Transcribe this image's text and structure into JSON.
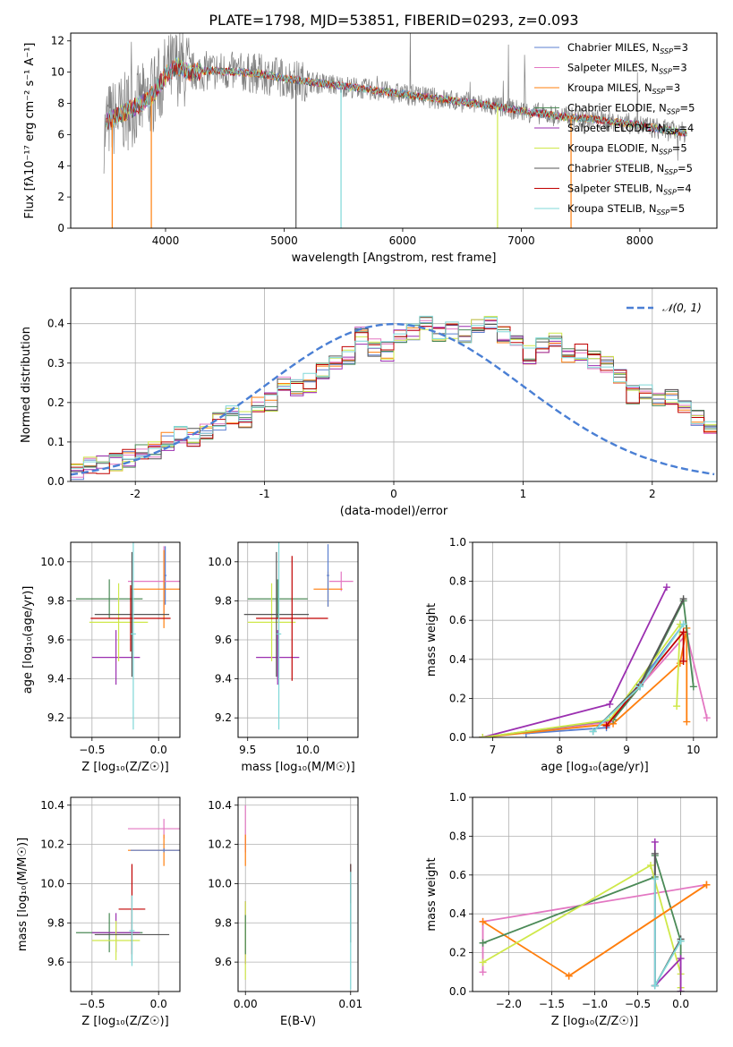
{
  "figure": {
    "title": "PLATE=1798, MJD=53851, FIBERID=0293, z=0.093"
  },
  "colors": {
    "chabrier_miles": "#5b7fd0",
    "salpeter_miles": "#e377c2",
    "kroupa_miles": "#ff7f0e",
    "chabrier_elodie": "#4b8a57",
    "salpeter_elodie": "#9b2fb0",
    "kroupa_elodie": "#cfe84a",
    "chabrier_stelib": "#555555",
    "salpeter_stelib": "#c00000",
    "kroupa_stelib": "#7fd8d8",
    "observed": "#808080",
    "normal_curve": "#4a7fd4"
  },
  "chart_data": [
    {
      "id": "spectrum",
      "type": "line",
      "xlabel": "wavelength [Angstrom, rest frame]",
      "ylabel": "Flux [fλ10⁻¹⁷ erg cm⁻² s⁻¹ A⁻¹]",
      "xlim": [
        3200,
        8650
      ],
      "ylim": [
        0,
        12.5
      ],
      "xticks": [
        4000,
        5000,
        6000,
        7000,
        8000
      ],
      "yticks": [
        0,
        2,
        4,
        6,
        8,
        10,
        12
      ],
      "grid": false,
      "legend_position": "top-right",
      "continuum": {
        "x": [
          3500,
          3600,
          3700,
          3800,
          3900,
          4000,
          4100,
          4200,
          4400,
          4600,
          4800,
          5000,
          5200,
          5400,
          5600,
          5800,
          6000,
          6200,
          6400,
          6600,
          6800,
          7000,
          7200,
          7400,
          7600,
          7800,
          8000,
          8200,
          8400
        ],
        "y": [
          6.8,
          7.2,
          7.6,
          8.0,
          8.6,
          9.8,
          10.4,
          10.0,
          10.1,
          10.0,
          9.9,
          9.6,
          9.4,
          9.2,
          9.0,
          8.8,
          8.6,
          8.4,
          8.2,
          8.0,
          7.8,
          7.5,
          7.3,
          7.1,
          7.0,
          6.8,
          6.6,
          6.3,
          6.1
        ]
      },
      "series": [
        {
          "name": "Chabrier MILES, N_SSP=3",
          "label_main": "Chabrier MILES, N",
          "label_sub": "SSP",
          "label_tail": "=3",
          "color_key": "chabrier_miles"
        },
        {
          "name": "Salpeter MILES, N_SSP=3",
          "label_main": "Salpeter MILES, N",
          "label_sub": "SSP",
          "label_tail": "=3",
          "color_key": "salpeter_miles"
        },
        {
          "name": "Kroupa MILES, N_SSP=3",
          "label_main": "Kroupa MILES, N",
          "label_sub": "SSP",
          "label_tail": "=3",
          "color_key": "kroupa_miles"
        },
        {
          "name": "Chabrier ELODIE, N_SSP=5",
          "label_main": "Chabrier ELODIE, N",
          "label_sub": "SSP",
          "label_tail": "=5",
          "color_key": "chabrier_elodie"
        },
        {
          "name": "Salpeter ELODIE, N_SSP=4",
          "label_main": "Salpeter ELODIE, N",
          "label_sub": "SSP",
          "label_tail": "=4",
          "color_key": "salpeter_elodie"
        },
        {
          "name": "Kroupa ELODIE, N_SSP=5",
          "label_main": "Kroupa ELODIE, N",
          "label_sub": "SSP",
          "label_tail": "=5",
          "color_key": "kroupa_elodie"
        },
        {
          "name": "Chabrier STELIB, N_SSP=5",
          "label_main": "Chabrier STELIB, N",
          "label_sub": "SSP",
          "label_tail": "=5",
          "color_key": "chabrier_stelib"
        },
        {
          "name": "Salpeter STELIB, N_SSP=4",
          "label_main": "Salpeter STELIB, N",
          "label_sub": "SSP",
          "label_tail": "=4",
          "color_key": "salpeter_stelib"
        },
        {
          "name": "Kroupa STELIB, N_SSP=5",
          "label_main": "Kroupa STELIB, N",
          "label_sub": "SSP",
          "label_tail": "=5",
          "color_key": "kroupa_stelib"
        }
      ]
    },
    {
      "id": "residuals",
      "type": "step",
      "xlabel": "(data-model)/error",
      "ylabel": "Normed distribution",
      "xlim": [
        -2.5,
        2.5
      ],
      "ylim": [
        0,
        0.49
      ],
      "xticks": [
        -2,
        -1,
        0,
        1,
        2
      ],
      "yticks": [
        0.0,
        0.1,
        0.2,
        0.3,
        0.4
      ],
      "grid": true,
      "legend_position": "top-right",
      "legend_label": "𝒩(0, 1)",
      "bin_width": 0.1,
      "bin_start": -2.5,
      "base_profile": [
        0.03,
        0.04,
        0.045,
        0.05,
        0.06,
        0.07,
        0.08,
        0.1,
        0.12,
        0.11,
        0.13,
        0.15,
        0.17,
        0.16,
        0.19,
        0.2,
        0.24,
        0.24,
        0.25,
        0.28,
        0.3,
        0.32,
        0.37,
        0.34,
        0.33,
        0.36,
        0.38,
        0.4,
        0.37,
        0.38,
        0.37,
        0.39,
        0.41,
        0.37,
        0.36,
        0.32,
        0.35,
        0.36,
        0.32,
        0.33,
        0.31,
        0.3,
        0.27,
        0.22,
        0.23,
        0.21,
        0.21,
        0.19,
        0.16,
        0.13,
        0.12,
        0.11,
        0.1,
        0.08,
        0.07,
        0.07,
        0.07,
        0.06,
        0.05,
        0.04,
        0.03,
        0.03
      ],
      "normal_curve": {
        "mu": 0,
        "sigma": 1
      }
    },
    {
      "id": "age_vs_Z",
      "type": "errorbar",
      "xlabel": "Z [log₁₀(Z/Z☉)]",
      "ylabel": "age  [log₁₀(age/yr)]",
      "xlim": [
        -0.66,
        0.16
      ],
      "ylim": [
        9.1,
        10.1
      ],
      "xticks": [
        -0.5,
        0.0
      ],
      "xtick_labels": [
        "−0.5",
        "0.0"
      ],
      "yticks": [
        9.2,
        9.4,
        9.6,
        9.8,
        10.0
      ],
      "grid": true,
      "points": [
        {
          "color_key": "chabrier_miles",
          "x": 0.05,
          "y": 9.93,
          "xerr": 0.01,
          "yerr": 0.15
        },
        {
          "color_key": "salpeter_miles",
          "x": 0.04,
          "y": 9.9,
          "xerr": 0.27,
          "yerr": 0.18
        },
        {
          "color_key": "kroupa_miles",
          "x": 0.04,
          "y": 9.86,
          "xerr": 0.25,
          "yerr": 0.2
        },
        {
          "color_key": "chabrier_elodie",
          "x": -0.37,
          "y": 9.81,
          "xerr": 0.25,
          "yerr": 0.1
        },
        {
          "color_key": "salpeter_elodie",
          "x": -0.32,
          "y": 9.51,
          "xerr": 0.18,
          "yerr": 0.14
        },
        {
          "color_key": "kroupa_elodie",
          "x": -0.3,
          "y": 9.69,
          "xerr": 0.22,
          "yerr": 0.2
        },
        {
          "color_key": "chabrier_stelib",
          "x": -0.2,
          "y": 9.73,
          "xerr": 0.28,
          "yerr": 0.32
        },
        {
          "color_key": "salpeter_stelib",
          "x": -0.21,
          "y": 9.71,
          "xerr": 0.3,
          "yerr": 0.17
        },
        {
          "color_key": "kroupa_stelib",
          "x": -0.19,
          "y": 9.63,
          "xerr": 0.02,
          "yerr": 0.49
        }
      ]
    },
    {
      "id": "age_vs_mass",
      "type": "errorbar",
      "xlabel": "mass [log₁₀(M/M☉)]",
      "xlim": [
        9.42,
        10.42
      ],
      "ylim": [
        9.1,
        10.1
      ],
      "xticks": [
        9.5,
        10.0
      ],
      "xtick_labels": [
        "9.5",
        "10.0"
      ],
      "yticks": [
        9.2,
        9.4,
        9.6,
        9.8,
        10.0
      ],
      "grid": true,
      "points": [
        {
          "color_key": "salpeter_miles",
          "x": 10.28,
          "y": 9.9,
          "xerr": 0.1,
          "yerr": 0.05
        },
        {
          "color_key": "kroupa_miles",
          "x": 10.17,
          "y": 9.86,
          "xerr": 0.12,
          "yerr": 0.09
        },
        {
          "color_key": "chabrier_miles",
          "x": 10.17,
          "y": 9.93,
          "xerr": 0.01,
          "yerr": 0.16
        },
        {
          "color_key": "chabrier_elodie",
          "x": 9.75,
          "y": 9.81,
          "xerr": 0.25,
          "yerr": 0.1
        },
        {
          "color_key": "salpeter_elodie",
          "x": 9.75,
          "y": 9.51,
          "xerr": 0.18,
          "yerr": 0.14
        },
        {
          "color_key": "kroupa_elodie",
          "x": 9.7,
          "y": 9.69,
          "xerr": 0.2,
          "yerr": 0.2
        },
        {
          "color_key": "chabrier_stelib",
          "x": 9.74,
          "y": 9.73,
          "xerr": 0.27,
          "yerr": 0.32
        },
        {
          "color_key": "salpeter_stelib",
          "x": 9.87,
          "y": 9.71,
          "xerr": 0.3,
          "yerr": 0.32
        },
        {
          "color_key": "kroupa_stelib",
          "x": 9.76,
          "y": 9.63,
          "xerr": 0.02,
          "yerr": 0.49
        }
      ]
    },
    {
      "id": "weight_vs_age",
      "type": "line",
      "xlabel": "age  [log₁₀(age/yr)]",
      "ylabel": "mass weight",
      "xlim": [
        6.7,
        10.35
      ],
      "ylim": [
        0,
        1.0
      ],
      "xticks": [
        7,
        8,
        9,
        10
      ],
      "yticks": [
        0.0,
        0.2,
        0.4,
        0.6,
        0.8,
        1.0
      ],
      "grid": true,
      "series": [
        {
          "color_key": "chabrier_miles",
          "x": [
            7.5,
            8.7,
            9.85
          ],
          "y": [
            0.02,
            0.05,
            0.58
          ]
        },
        {
          "color_key": "salpeter_miles",
          "x": [
            6.85,
            8.75,
            9.2,
            9.9,
            10.2
          ],
          "y": [
            0.0,
            0.08,
            0.26,
            0.53,
            0.1
          ]
        },
        {
          "color_key": "kroupa_miles",
          "x": [
            6.85,
            8.8,
            9.8,
            9.9,
            9.9
          ],
          "y": [
            0.0,
            0.07,
            0.38,
            0.56,
            0.08
          ]
        },
        {
          "color_key": "chabrier_elodie",
          "x": [
            6.85,
            8.8,
            9.2,
            9.85,
            10.0
          ],
          "y": [
            0.0,
            0.09,
            0.26,
            0.7,
            0.26
          ]
        },
        {
          "color_key": "salpeter_elodie",
          "x": [
            6.85,
            8.75,
            9.6
          ],
          "y": [
            0.0,
            0.17,
            0.77
          ]
        },
        {
          "color_key": "kroupa_elodie",
          "x": [
            6.85,
            8.75,
            9.8,
            9.75
          ],
          "y": [
            0.0,
            0.09,
            0.58,
            0.16
          ]
        },
        {
          "color_key": "chabrier_stelib",
          "x": [
            8.5,
            9.2,
            9.85
          ],
          "y": [
            0.03,
            0.27,
            0.71
          ]
        },
        {
          "color_key": "salpeter_stelib",
          "x": [
            8.7,
            9.85,
            9.85
          ],
          "y": [
            0.06,
            0.54,
            0.39
          ]
        },
        {
          "color_key": "kroupa_stelib",
          "x": [
            8.5,
            9.2,
            9.85
          ],
          "y": [
            0.03,
            0.26,
            0.58
          ]
        }
      ]
    },
    {
      "id": "mass_vs_Z",
      "type": "errorbar",
      "xlabel": "Z [log₁₀(Z/Z☉)]",
      "ylabel": "mass [log₁₀(M/M☉)]",
      "xlim": [
        -0.66,
        0.16
      ],
      "ylim": [
        9.45,
        10.44
      ],
      "xticks": [
        -0.5,
        0.0
      ],
      "xtick_labels": [
        "−0.5",
        "0.0"
      ],
      "yticks": [
        9.6,
        9.8,
        10.0,
        10.2,
        10.4
      ],
      "grid": true,
      "points": [
        {
          "color_key": "salpeter_miles",
          "x": 0.04,
          "y": 10.28,
          "xerr": 0.27,
          "yerr": 0.05
        },
        {
          "color_key": "kroupa_miles",
          "x": 0.04,
          "y": 10.17,
          "xerr": 0.27,
          "yerr": 0.08
        },
        {
          "color_key": "chabrier_miles",
          "x": 0.04,
          "y": 10.17,
          "xerr": 0.25,
          "yerr": 0.01
        },
        {
          "color_key": "chabrier_elodie",
          "x": -0.37,
          "y": 9.75,
          "xerr": 0.25,
          "yerr": 0.1
        },
        {
          "color_key": "salpeter_elodie",
          "x": -0.32,
          "y": 9.75,
          "xerr": 0.18,
          "yerr": 0.1
        },
        {
          "color_key": "kroupa_elodie",
          "x": -0.32,
          "y": 9.71,
          "xerr": 0.18,
          "yerr": 0.1
        },
        {
          "color_key": "chabrier_stelib",
          "x": -0.2,
          "y": 9.74,
          "xerr": 0.28,
          "yerr": 0.13
        },
        {
          "color_key": "salpeter_stelib",
          "x": -0.2,
          "y": 9.87,
          "xerr": 0.1,
          "yerr": 0.23
        },
        {
          "color_key": "kroupa_stelib",
          "x": -0.2,
          "y": 9.76,
          "xerr": 0.02,
          "yerr": 0.18
        }
      ]
    },
    {
      "id": "mass_vs_ebv",
      "type": "errorbar",
      "xlabel": "E(B-V)",
      "xlim": [
        -0.0007,
        0.0107
      ],
      "ylim": [
        9.45,
        10.44
      ],
      "xticks": [
        0.0,
        0.01
      ],
      "xtick_labels": [
        "0.00",
        "0.01"
      ],
      "yticks": [
        9.6,
        9.8,
        10.0,
        10.2,
        10.4
      ],
      "grid": true,
      "points": [
        {
          "color_key": "salpeter_miles",
          "x": 0.0,
          "y": 10.28,
          "xerr": 0,
          "yerr": 0.12
        },
        {
          "color_key": "kroupa_miles",
          "x": 0.0,
          "y": 10.17,
          "xerr": 0,
          "yerr": 0.08
        },
        {
          "color_key": "salpeter_elodie",
          "x": 0.0,
          "y": 9.75,
          "xerr": 0,
          "yerr": 0.16
        },
        {
          "color_key": "kroupa_elodie",
          "x": 0.0,
          "y": 9.71,
          "xerr": 0,
          "yerr": 0.2
        },
        {
          "color_key": "chabrier_elodie",
          "x": 0.0,
          "y": 9.74,
          "xerr": 0,
          "yerr": 0.1
        },
        {
          "color_key": "salpeter_stelib",
          "x": 0.01,
          "y": 10.0,
          "xerr": 0,
          "yerr": 0.1
        },
        {
          "color_key": "chabrier_stelib",
          "x": 0.01,
          "y": 9.9,
          "xerr": 0,
          "yerr": 0.2
        },
        {
          "color_key": "kroupa_stelib",
          "x": 0.01,
          "y": 9.76,
          "xerr": 0,
          "yerr": 0.3
        }
      ]
    },
    {
      "id": "weight_vs_Z",
      "type": "line",
      "xlabel": "Z [log₁₀(Z/Z☉)]",
      "ylabel": "mass weight",
      "xlim": [
        -2.42,
        0.42
      ],
      "ylim": [
        0,
        1.0
      ],
      "xticks": [
        -2.0,
        -1.5,
        -1.0,
        -0.5,
        0.0
      ],
      "xtick_labels": [
        "−2.0",
        "−1.5",
        "−1.0",
        "−0.5",
        "0.0"
      ],
      "yticks": [
        0.0,
        0.2,
        0.4,
        0.6,
        0.8,
        1.0
      ],
      "grid": true,
      "series": [
        {
          "color_key": "salpeter_miles",
          "x": [
            -2.3,
            -2.3,
            0.3
          ],
          "y": [
            0.1,
            0.36,
            0.55
          ]
        },
        {
          "color_key": "kroupa_miles",
          "x": [
            -2.3,
            -1.3,
            0.3
          ],
          "y": [
            0.36,
            0.08,
            0.55
          ]
        },
        {
          "color_key": "chabrier_elodie",
          "x": [
            -2.3,
            -0.3,
            -0.3,
            0.0,
            0.0
          ],
          "y": [
            0.25,
            0.59,
            0.7,
            0.26,
            0.0
          ]
        },
        {
          "color_key": "kroupa_elodie",
          "x": [
            -2.3,
            -0.35,
            0.0,
            0.0
          ],
          "y": [
            0.15,
            0.65,
            0.09,
            0.02
          ]
        },
        {
          "color_key": "salpeter_elodie",
          "x": [
            -0.3,
            -0.3,
            0.0,
            0.0
          ],
          "y": [
            0.77,
            0.03,
            0.17,
            0.0
          ]
        },
        {
          "color_key": "chabrier_stelib",
          "x": [
            -0.3,
            -0.3,
            0.0
          ],
          "y": [
            0.71,
            0.03,
            0.27
          ]
        },
        {
          "color_key": "kroupa_stelib",
          "x": [
            -0.3,
            -0.3,
            0.0
          ],
          "y": [
            0.58,
            0.03,
            0.26
          ]
        },
        {
          "color_key": "kroupa_miles",
          "x": [
            -1.3,
            0.3
          ],
          "y": [
            0.08,
            0.55
          ]
        }
      ]
    }
  ]
}
